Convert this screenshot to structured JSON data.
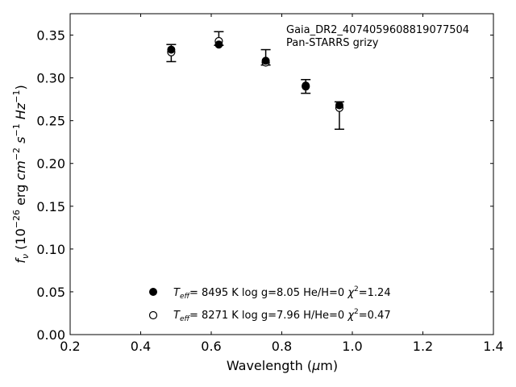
{
  "chart_data": {
    "type": "scatter",
    "xlabel": "Wavelength (μm)",
    "ylabel": "f_ν (10^-26 erg cm^-2 s^-1 Hz^-1)",
    "xlim": [
      0.2,
      1.4
    ],
    "ylim": [
      0.0,
      0.375
    ],
    "xticks": [
      "0.2",
      "0.4",
      "0.6",
      "0.8",
      "1.0",
      "1.2",
      "1.4"
    ],
    "xtick_values": [
      0.2,
      0.4,
      0.6,
      0.8,
      1.0,
      1.2,
      1.4
    ],
    "yticks": [
      "0.00",
      "0.05",
      "0.10",
      "0.15",
      "0.20",
      "0.25",
      "0.30",
      "0.35"
    ],
    "ytick_values": [
      0.0,
      0.05,
      0.1,
      0.15,
      0.2,
      0.25,
      0.3,
      0.35
    ],
    "grid": false,
    "annotation": [
      "Gaia_DR2_4074059608819077504",
      "Pan-STARRS grizy"
    ],
    "observed": {
      "x": [
        0.4866,
        0.6215,
        0.7545,
        0.8679,
        0.9633
      ],
      "y": [
        0.329,
        0.346,
        0.324,
        0.29,
        0.256
      ],
      "yerr": [
        0.01,
        0.008,
        0.009,
        0.008,
        0.016
      ]
    },
    "series": [
      {
        "name": "T_eff= 8495 K  log g=8.05  He/H=0  χ²=1.24",
        "marker": "filled-circle",
        "color": "#000000",
        "x": [
          0.4866,
          0.6215,
          0.7545,
          0.8679,
          0.9633
        ],
        "y": [
          0.333,
          0.339,
          0.32,
          0.291,
          0.268
        ]
      },
      {
        "name": "T_eff= 8271 K  log g=7.96  H/He=0  χ²=0.47",
        "marker": "open-circle",
        "color": "#000000",
        "x": [
          0.4866,
          0.6215,
          0.7545,
          0.8679,
          0.9633
        ],
        "y": [
          0.33,
          0.343,
          0.318,
          0.29,
          0.265
        ]
      }
    ],
    "legend": {
      "placement": "lower-center",
      "entries": [
        {
          "teff": "8495",
          "rest": "K  log g=8.05  He/H=0",
          "chi2": "=1.24"
        },
        {
          "teff": "8271",
          "rest": "K  log g=7.96  H/He=0",
          "chi2": "=0.47"
        }
      ]
    }
  }
}
